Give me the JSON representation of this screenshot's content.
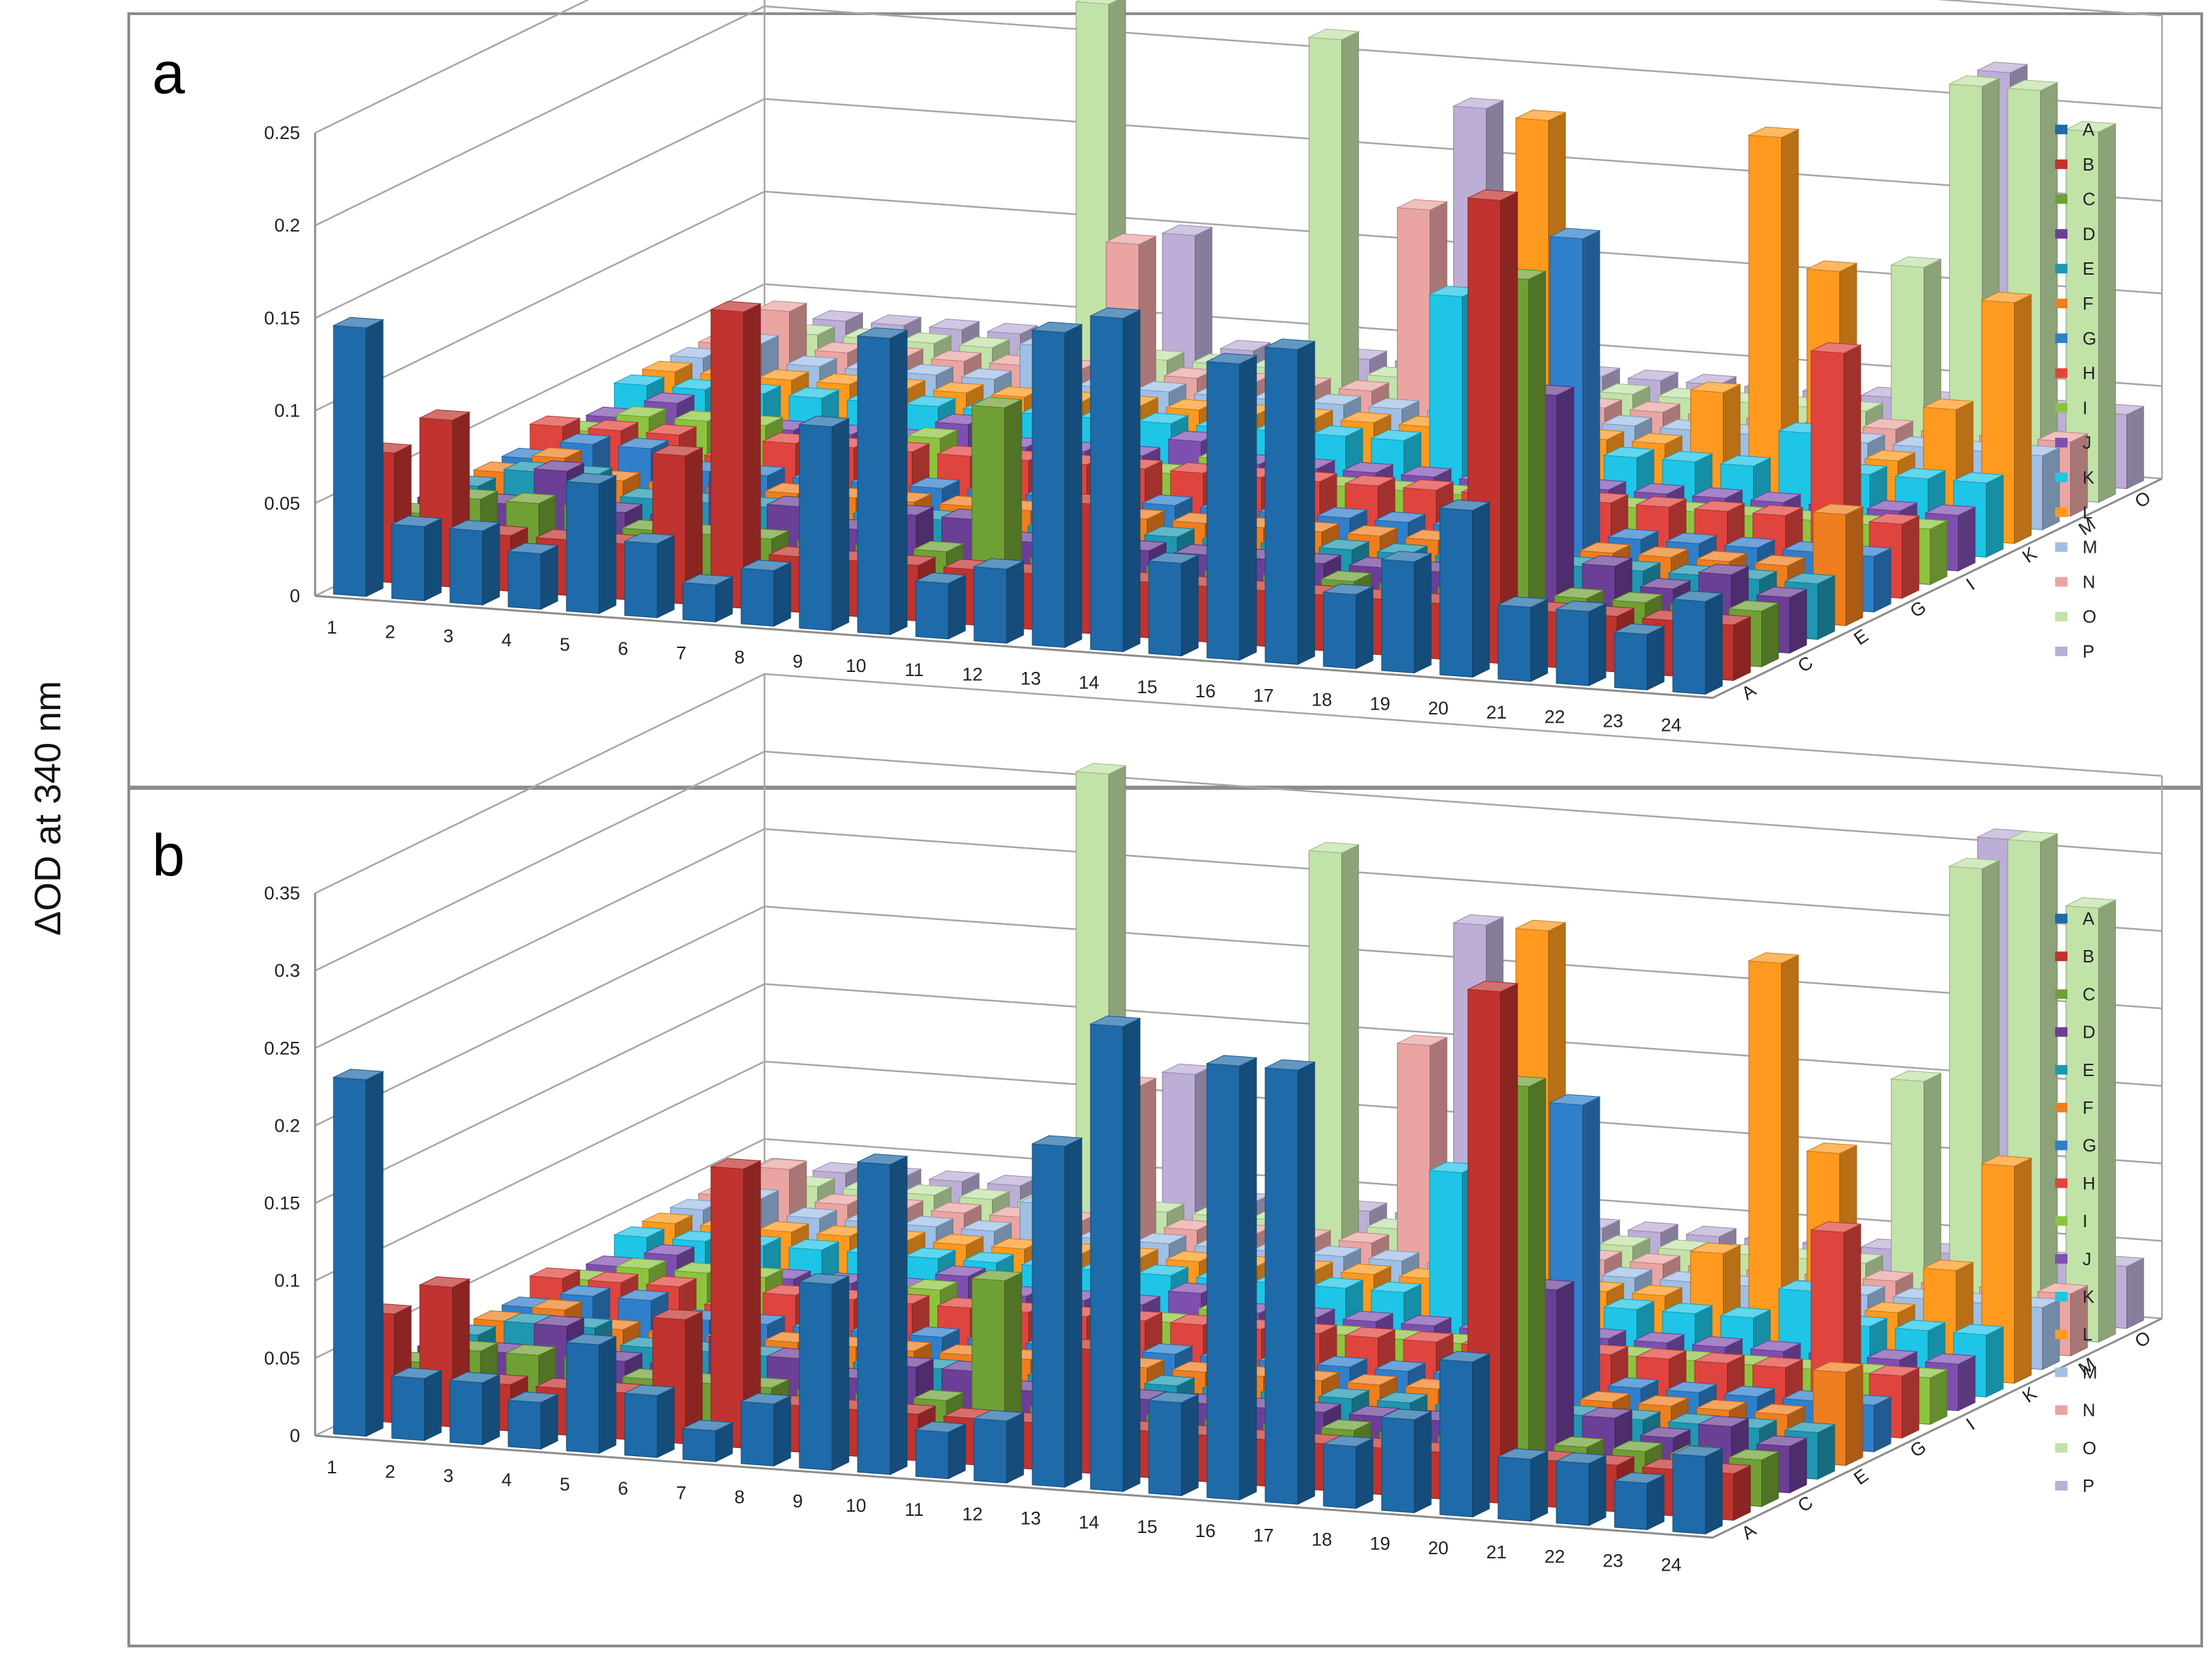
{
  "y_axis_title": "ΔOD at 340 nm",
  "colors": {
    "A": "#1f6aa8",
    "B": "#c0332f",
    "C": "#6fa035",
    "D": "#6b3f96",
    "E": "#1f97b1",
    "F": "#ef7f1e",
    "G": "#2f7fcb",
    "H": "#e0443e",
    "I": "#8dc43f",
    "J": "#7e4fb0",
    "K": "#1ec5e6",
    "L": "#ff9a1e",
    "M": "#9fbfe5",
    "N": "#eaa5a3",
    "O": "#c2e3a8",
    "P": "#bcaed6"
  },
  "chart_data": [
    {
      "panel": "a",
      "type": "bar3d",
      "y_ticks": [
        "0",
        "0.05",
        "0.1",
        "0.15",
        "0.2",
        "0.25"
      ],
      "ylim": [
        0,
        0.25
      ],
      "x_categories": [
        "1",
        "2",
        "3",
        "4",
        "5",
        "6",
        "7",
        "8",
        "9",
        "10",
        "11",
        "12",
        "13",
        "14",
        "15",
        "16",
        "17",
        "18",
        "19",
        "20",
        "21",
        "22",
        "23",
        "24"
      ],
      "depth_ticks": [
        "A",
        "C",
        "E",
        "G",
        "I",
        "K",
        "M",
        "O"
      ],
      "legend": [
        "A",
        "B",
        "C",
        "D",
        "E",
        "F",
        "G",
        "H",
        "I",
        "J",
        "K",
        "L",
        "M",
        "N",
        "O",
        "P"
      ],
      "series": [
        {
          "name": "A",
          "values": [
            0.145,
            0.04,
            0.04,
            0.03,
            0.07,
            0.04,
            0.02,
            0.03,
            0.11,
            0.16,
            0.03,
            0.04,
            0.17,
            0.18,
            0.05,
            0.16,
            0.17,
            0.04,
            0.06,
            0.09,
            0.04,
            0.04,
            0.03,
            0.05
          ]
        },
        {
          "name": "B",
          "values": [
            0.07,
            0.09,
            0.03,
            0.03,
            0.03,
            0.08,
            0.16,
            0.03,
            0.03,
            0.03,
            0.03,
            0.03,
            0.07,
            0.03,
            0.03,
            0.03,
            0.03,
            0.03,
            0.03,
            0.25,
            0.03,
            0.03,
            0.03,
            0.03
          ]
        },
        {
          "name": "C",
          "values": [
            0.03,
            0.04,
            0.04,
            0.04,
            0.03,
            0.03,
            0.03,
            0.03,
            0.03,
            0.03,
            0.11,
            0.03,
            0.03,
            0.03,
            0.03,
            0.03,
            0.03,
            0.03,
            0.03,
            0.2,
            0.03,
            0.03,
            0.03,
            0.03
          ]
        },
        {
          "name": "D",
          "values": [
            0.03,
            0.03,
            0.05,
            0.03,
            0.03,
            0.05,
            0.04,
            0.03,
            0.04,
            0.04,
            0.03,
            0.04,
            0.03,
            0.03,
            0.03,
            0.03,
            0.03,
            0.03,
            0.03,
            0.13,
            0.04,
            0.03,
            0.04,
            0.03
          ]
        },
        {
          "name": "E",
          "values": [
            0.03,
            0.04,
            0.04,
            0.03,
            0.03,
            0.03,
            0.03,
            0.03,
            0.03,
            0.03,
            0.03,
            0.03,
            0.03,
            0.03,
            0.03,
            0.03,
            0.03,
            0.03,
            0.03,
            0.03,
            0.03,
            0.03,
            0.03,
            0.03
          ]
        },
        {
          "name": "F",
          "values": [
            0.03,
            0.04,
            0.03,
            0.03,
            0.03,
            0.03,
            0.03,
            0.03,
            0.03,
            0.03,
            0.03,
            0.03,
            0.03,
            0.03,
            0.03,
            0.03,
            0.03,
            0.03,
            0.03,
            0.03,
            0.03,
            0.03,
            0.03,
            0.06
          ]
        },
        {
          "name": "G",
          "values": [
            0.03,
            0.04,
            0.04,
            0.03,
            0.03,
            0.03,
            0.03,
            0.03,
            0.03,
            0.03,
            0.03,
            0.03,
            0.03,
            0.03,
            0.03,
            0.03,
            0.03,
            0.03,
            0.19,
            0.03,
            0.03,
            0.03,
            0.03,
            0.03
          ]
        },
        {
          "name": "H",
          "values": [
            0.04,
            0.04,
            0.04,
            0.03,
            0.04,
            0.04,
            0.04,
            0.04,
            0.04,
            0.04,
            0.04,
            0.04,
            0.04,
            0.04,
            0.04,
            0.04,
            0.04,
            0.04,
            0.04,
            0.04,
            0.04,
            0.04,
            0.13,
            0.04
          ]
        },
        {
          "name": "I",
          "values": [
            0.03,
            0.04,
            0.04,
            0.04,
            0.03,
            0.03,
            0.04,
            0.03,
            0.03,
            0.03,
            0.03,
            0.04,
            0.03,
            0.03,
            0.03,
            0.03,
            0.03,
            0.03,
            0.03,
            0.03,
            0.03,
            0.03,
            0.03,
            0.03
          ]
        },
        {
          "name": "J",
          "values": [
            0.03,
            0.04,
            0.03,
            0.03,
            0.03,
            0.03,
            0.04,
            0.03,
            0.03,
            0.03,
            0.04,
            0.03,
            0.03,
            0.03,
            0.03,
            0.03,
            0.03,
            0.03,
            0.03,
            0.03,
            0.03,
            0.03,
            0.03,
            0.03
          ]
        },
        {
          "name": "K",
          "values": [
            0.04,
            0.04,
            0.04,
            0.04,
            0.04,
            0.04,
            0.04,
            0.04,
            0.04,
            0.04,
            0.04,
            0.04,
            0.04,
            0.04,
            0.12,
            0.04,
            0.04,
            0.04,
            0.04,
            0.04,
            0.06,
            0.04,
            0.04,
            0.04
          ]
        },
        {
          "name": "L",
          "values": [
            0.04,
            0.04,
            0.04,
            0.04,
            0.04,
            0.04,
            0.04,
            0.04,
            0.04,
            0.04,
            0.04,
            0.04,
            0.04,
            0.04,
            0.04,
            0.21,
            0.04,
            0.04,
            0.07,
            0.21,
            0.14,
            0.04,
            0.07,
            0.13
          ]
        },
        {
          "name": "M",
          "values": [
            0.04,
            0.05,
            0.04,
            0.04,
            0.04,
            0.04,
            0.06,
            0.04,
            0.04,
            0.04,
            0.04,
            0.04,
            0.04,
            0.04,
            0.04,
            0.04,
            0.04,
            0.04,
            0.04,
            0.04,
            0.04,
            0.04,
            0.04,
            0.04
          ]
        },
        {
          "name": "N",
          "values": [
            0.04,
            0.06,
            0.04,
            0.04,
            0.04,
            0.04,
            0.04,
            0.11,
            0.04,
            0.04,
            0.04,
            0.04,
            0.14,
            0.04,
            0.04,
            0.04,
            0.04,
            0.04,
            0.04,
            0.04,
            0.04,
            0.04,
            0.04,
            0.04
          ]
        },
        {
          "name": "O",
          "values": [
            0.04,
            0.04,
            0.04,
            0.04,
            0.04,
            0.04,
            0.23,
            0.04,
            0.04,
            0.04,
            0.22,
            0.04,
            0.04,
            0.04,
            0.04,
            0.04,
            0.04,
            0.04,
            0.04,
            0.04,
            0.12,
            0.22,
            0.22,
            0.2
          ]
        },
        {
          "name": "P",
          "values": [
            0.04,
            0.04,
            0.04,
            0.04,
            0.04,
            0.04,
            0.04,
            0.1,
            0.04,
            0.04,
            0.04,
            0.04,
            0.18,
            0.04,
            0.04,
            0.04,
            0.04,
            0.04,
            0.04,
            0.04,
            0.04,
            0.22,
            0.04,
            0.04
          ]
        }
      ]
    },
    {
      "panel": "b",
      "type": "bar3d",
      "y_ticks": [
        "0",
        "0.05",
        "0.1",
        "0.15",
        "0.2",
        "0.25",
        "0.3",
        "0.35"
      ],
      "ylim": [
        0,
        0.35
      ],
      "x_categories": [
        "1",
        "2",
        "3",
        "4",
        "5",
        "6",
        "7",
        "8",
        "9",
        "10",
        "11",
        "12",
        "13",
        "14",
        "15",
        "16",
        "17",
        "18",
        "19",
        "20",
        "21",
        "22",
        "23",
        "24"
      ],
      "depth_ticks": [
        "A",
        "C",
        "E",
        "G",
        "I",
        "K",
        "M",
        "O"
      ],
      "legend": [
        "A",
        "B",
        "C",
        "D",
        "E",
        "F",
        "G",
        "H",
        "I",
        "J",
        "K",
        "L",
        "M",
        "N",
        "O",
        "P"
      ],
      "series": [
        {
          "name": "A",
          "values": [
            0.23,
            0.04,
            0.04,
            0.03,
            0.07,
            0.04,
            0.02,
            0.04,
            0.12,
            0.2,
            0.03,
            0.04,
            0.22,
            0.3,
            0.06,
            0.28,
            0.28,
            0.04,
            0.06,
            0.1,
            0.04,
            0.04,
            0.03,
            0.05
          ]
        },
        {
          "name": "B",
          "values": [
            0.07,
            0.09,
            0.03,
            0.03,
            0.03,
            0.08,
            0.18,
            0.03,
            0.03,
            0.03,
            0.03,
            0.03,
            0.08,
            0.03,
            0.03,
            0.03,
            0.03,
            0.03,
            0.03,
            0.33,
            0.03,
            0.03,
            0.03,
            0.03
          ]
        },
        {
          "name": "C",
          "values": [
            0.03,
            0.04,
            0.04,
            0.04,
            0.03,
            0.03,
            0.03,
            0.03,
            0.03,
            0.03,
            0.11,
            0.03,
            0.03,
            0.03,
            0.03,
            0.03,
            0.03,
            0.03,
            0.03,
            0.26,
            0.03,
            0.03,
            0.03,
            0.03
          ]
        },
        {
          "name": "D",
          "values": [
            0.03,
            0.03,
            0.05,
            0.03,
            0.03,
            0.05,
            0.04,
            0.03,
            0.04,
            0.04,
            0.03,
            0.04,
            0.03,
            0.03,
            0.03,
            0.03,
            0.03,
            0.03,
            0.03,
            0.12,
            0.04,
            0.03,
            0.04,
            0.03
          ]
        },
        {
          "name": "E",
          "values": [
            0.03,
            0.04,
            0.04,
            0.03,
            0.03,
            0.03,
            0.03,
            0.03,
            0.03,
            0.03,
            0.03,
            0.03,
            0.03,
            0.03,
            0.03,
            0.03,
            0.03,
            0.03,
            0.03,
            0.03,
            0.03,
            0.03,
            0.03,
            0.03
          ]
        },
        {
          "name": "F",
          "values": [
            0.03,
            0.04,
            0.03,
            0.03,
            0.03,
            0.03,
            0.03,
            0.03,
            0.03,
            0.03,
            0.03,
            0.03,
            0.03,
            0.03,
            0.03,
            0.03,
            0.03,
            0.03,
            0.03,
            0.03,
            0.03,
            0.03,
            0.03,
            0.06
          ]
        },
        {
          "name": "G",
          "values": [
            0.03,
            0.04,
            0.04,
            0.03,
            0.03,
            0.03,
            0.03,
            0.03,
            0.03,
            0.03,
            0.03,
            0.03,
            0.03,
            0.03,
            0.03,
            0.03,
            0.03,
            0.03,
            0.21,
            0.03,
            0.03,
            0.03,
            0.03,
            0.03
          ]
        },
        {
          "name": "H",
          "values": [
            0.04,
            0.04,
            0.04,
            0.03,
            0.04,
            0.04,
            0.04,
            0.04,
            0.04,
            0.04,
            0.04,
            0.04,
            0.04,
            0.04,
            0.04,
            0.04,
            0.04,
            0.04,
            0.04,
            0.04,
            0.04,
            0.04,
            0.13,
            0.04
          ]
        },
        {
          "name": "I",
          "values": [
            0.03,
            0.04,
            0.04,
            0.04,
            0.03,
            0.03,
            0.04,
            0.03,
            0.03,
            0.03,
            0.03,
            0.04,
            0.03,
            0.03,
            0.03,
            0.03,
            0.03,
            0.03,
            0.03,
            0.03,
            0.03,
            0.03,
            0.03,
            0.03
          ]
        },
        {
          "name": "J",
          "values": [
            0.03,
            0.04,
            0.03,
            0.03,
            0.03,
            0.03,
            0.04,
            0.03,
            0.03,
            0.03,
            0.04,
            0.03,
            0.03,
            0.03,
            0.03,
            0.03,
            0.03,
            0.03,
            0.03,
            0.03,
            0.03,
            0.03,
            0.03,
            0.03
          ]
        },
        {
          "name": "K",
          "values": [
            0.04,
            0.04,
            0.04,
            0.04,
            0.04,
            0.04,
            0.04,
            0.04,
            0.04,
            0.04,
            0.04,
            0.04,
            0.04,
            0.04,
            0.12,
            0.04,
            0.04,
            0.04,
            0.04,
            0.04,
            0.06,
            0.04,
            0.04,
            0.04
          ]
        },
        {
          "name": "L",
          "values": [
            0.04,
            0.04,
            0.04,
            0.04,
            0.04,
            0.04,
            0.04,
            0.04,
            0.04,
            0.04,
            0.04,
            0.04,
            0.04,
            0.04,
            0.04,
            0.27,
            0.04,
            0.04,
            0.07,
            0.26,
            0.14,
            0.04,
            0.07,
            0.14
          ]
        },
        {
          "name": "M",
          "values": [
            0.04,
            0.05,
            0.04,
            0.04,
            0.04,
            0.04,
            0.06,
            0.04,
            0.04,
            0.04,
            0.04,
            0.04,
            0.04,
            0.04,
            0.04,
            0.04,
            0.04,
            0.04,
            0.04,
            0.04,
            0.04,
            0.04,
            0.04,
            0.04
          ]
        },
        {
          "name": "N",
          "values": [
            0.04,
            0.06,
            0.04,
            0.04,
            0.04,
            0.04,
            0.04,
            0.13,
            0.04,
            0.04,
            0.04,
            0.04,
            0.17,
            0.04,
            0.04,
            0.04,
            0.04,
            0.04,
            0.04,
            0.04,
            0.04,
            0.04,
            0.04,
            0.04
          ]
        },
        {
          "name": "O",
          "values": [
            0.04,
            0.04,
            0.04,
            0.04,
            0.04,
            0.04,
            0.32,
            0.04,
            0.04,
            0.04,
            0.28,
            0.04,
            0.04,
            0.04,
            0.04,
            0.04,
            0.04,
            0.04,
            0.04,
            0.04,
            0.16,
            0.3,
            0.32,
            0.28
          ]
        },
        {
          "name": "P",
          "values": [
            0.04,
            0.04,
            0.04,
            0.04,
            0.04,
            0.04,
            0.04,
            0.12,
            0.04,
            0.04,
            0.04,
            0.04,
            0.23,
            0.04,
            0.04,
            0.04,
            0.04,
            0.04,
            0.04,
            0.04,
            0.04,
            0.31,
            0.04,
            0.04
          ]
        }
      ]
    }
  ]
}
